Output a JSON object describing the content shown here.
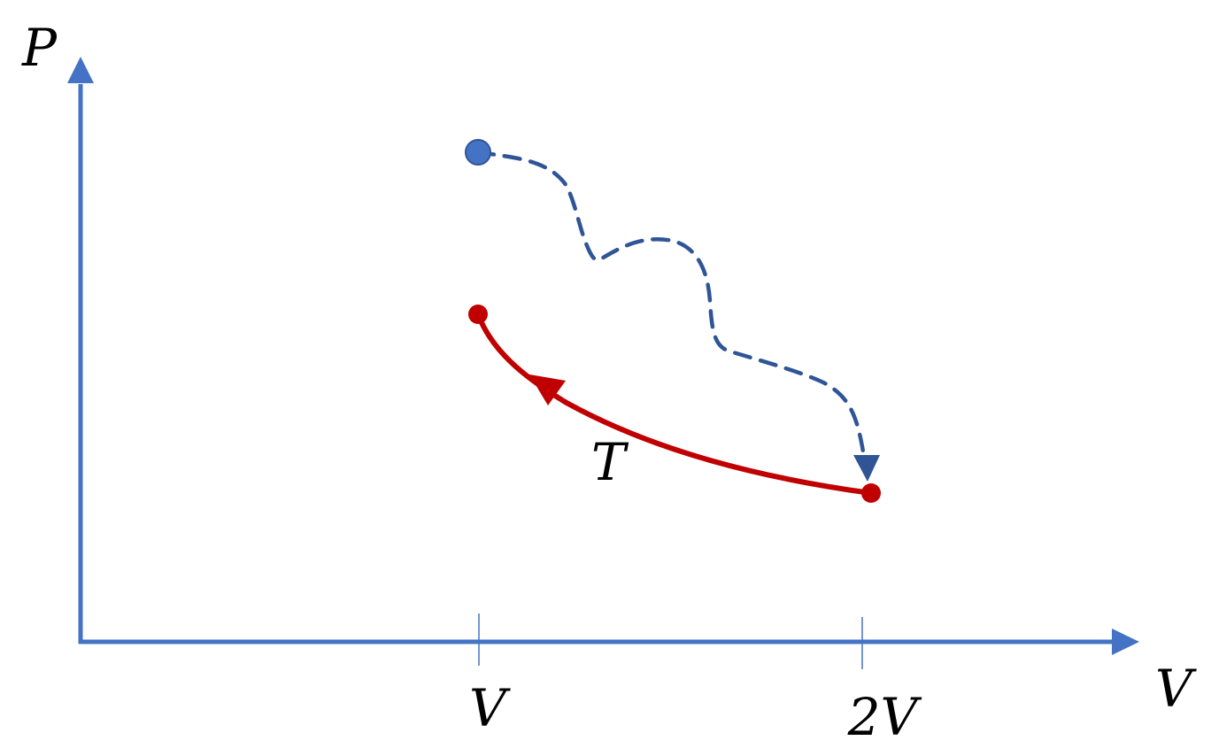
{
  "axes": {
    "y_label": "P",
    "x_label": "V",
    "color": "#4472C4"
  },
  "ticks": [
    {
      "label": "V"
    },
    {
      "label": "2V"
    }
  ],
  "processes": {
    "isotherm": {
      "label": "T",
      "color": "#C00000",
      "line_style": "solid"
    },
    "irreversible": {
      "color": "#2F5597",
      "line_style": "dashed"
    }
  },
  "states": {
    "initial": {
      "color": "#4472C4"
    },
    "isotherm_start": {
      "color": "#C00000"
    },
    "isotherm_end": {
      "color": "#C00000"
    }
  }
}
